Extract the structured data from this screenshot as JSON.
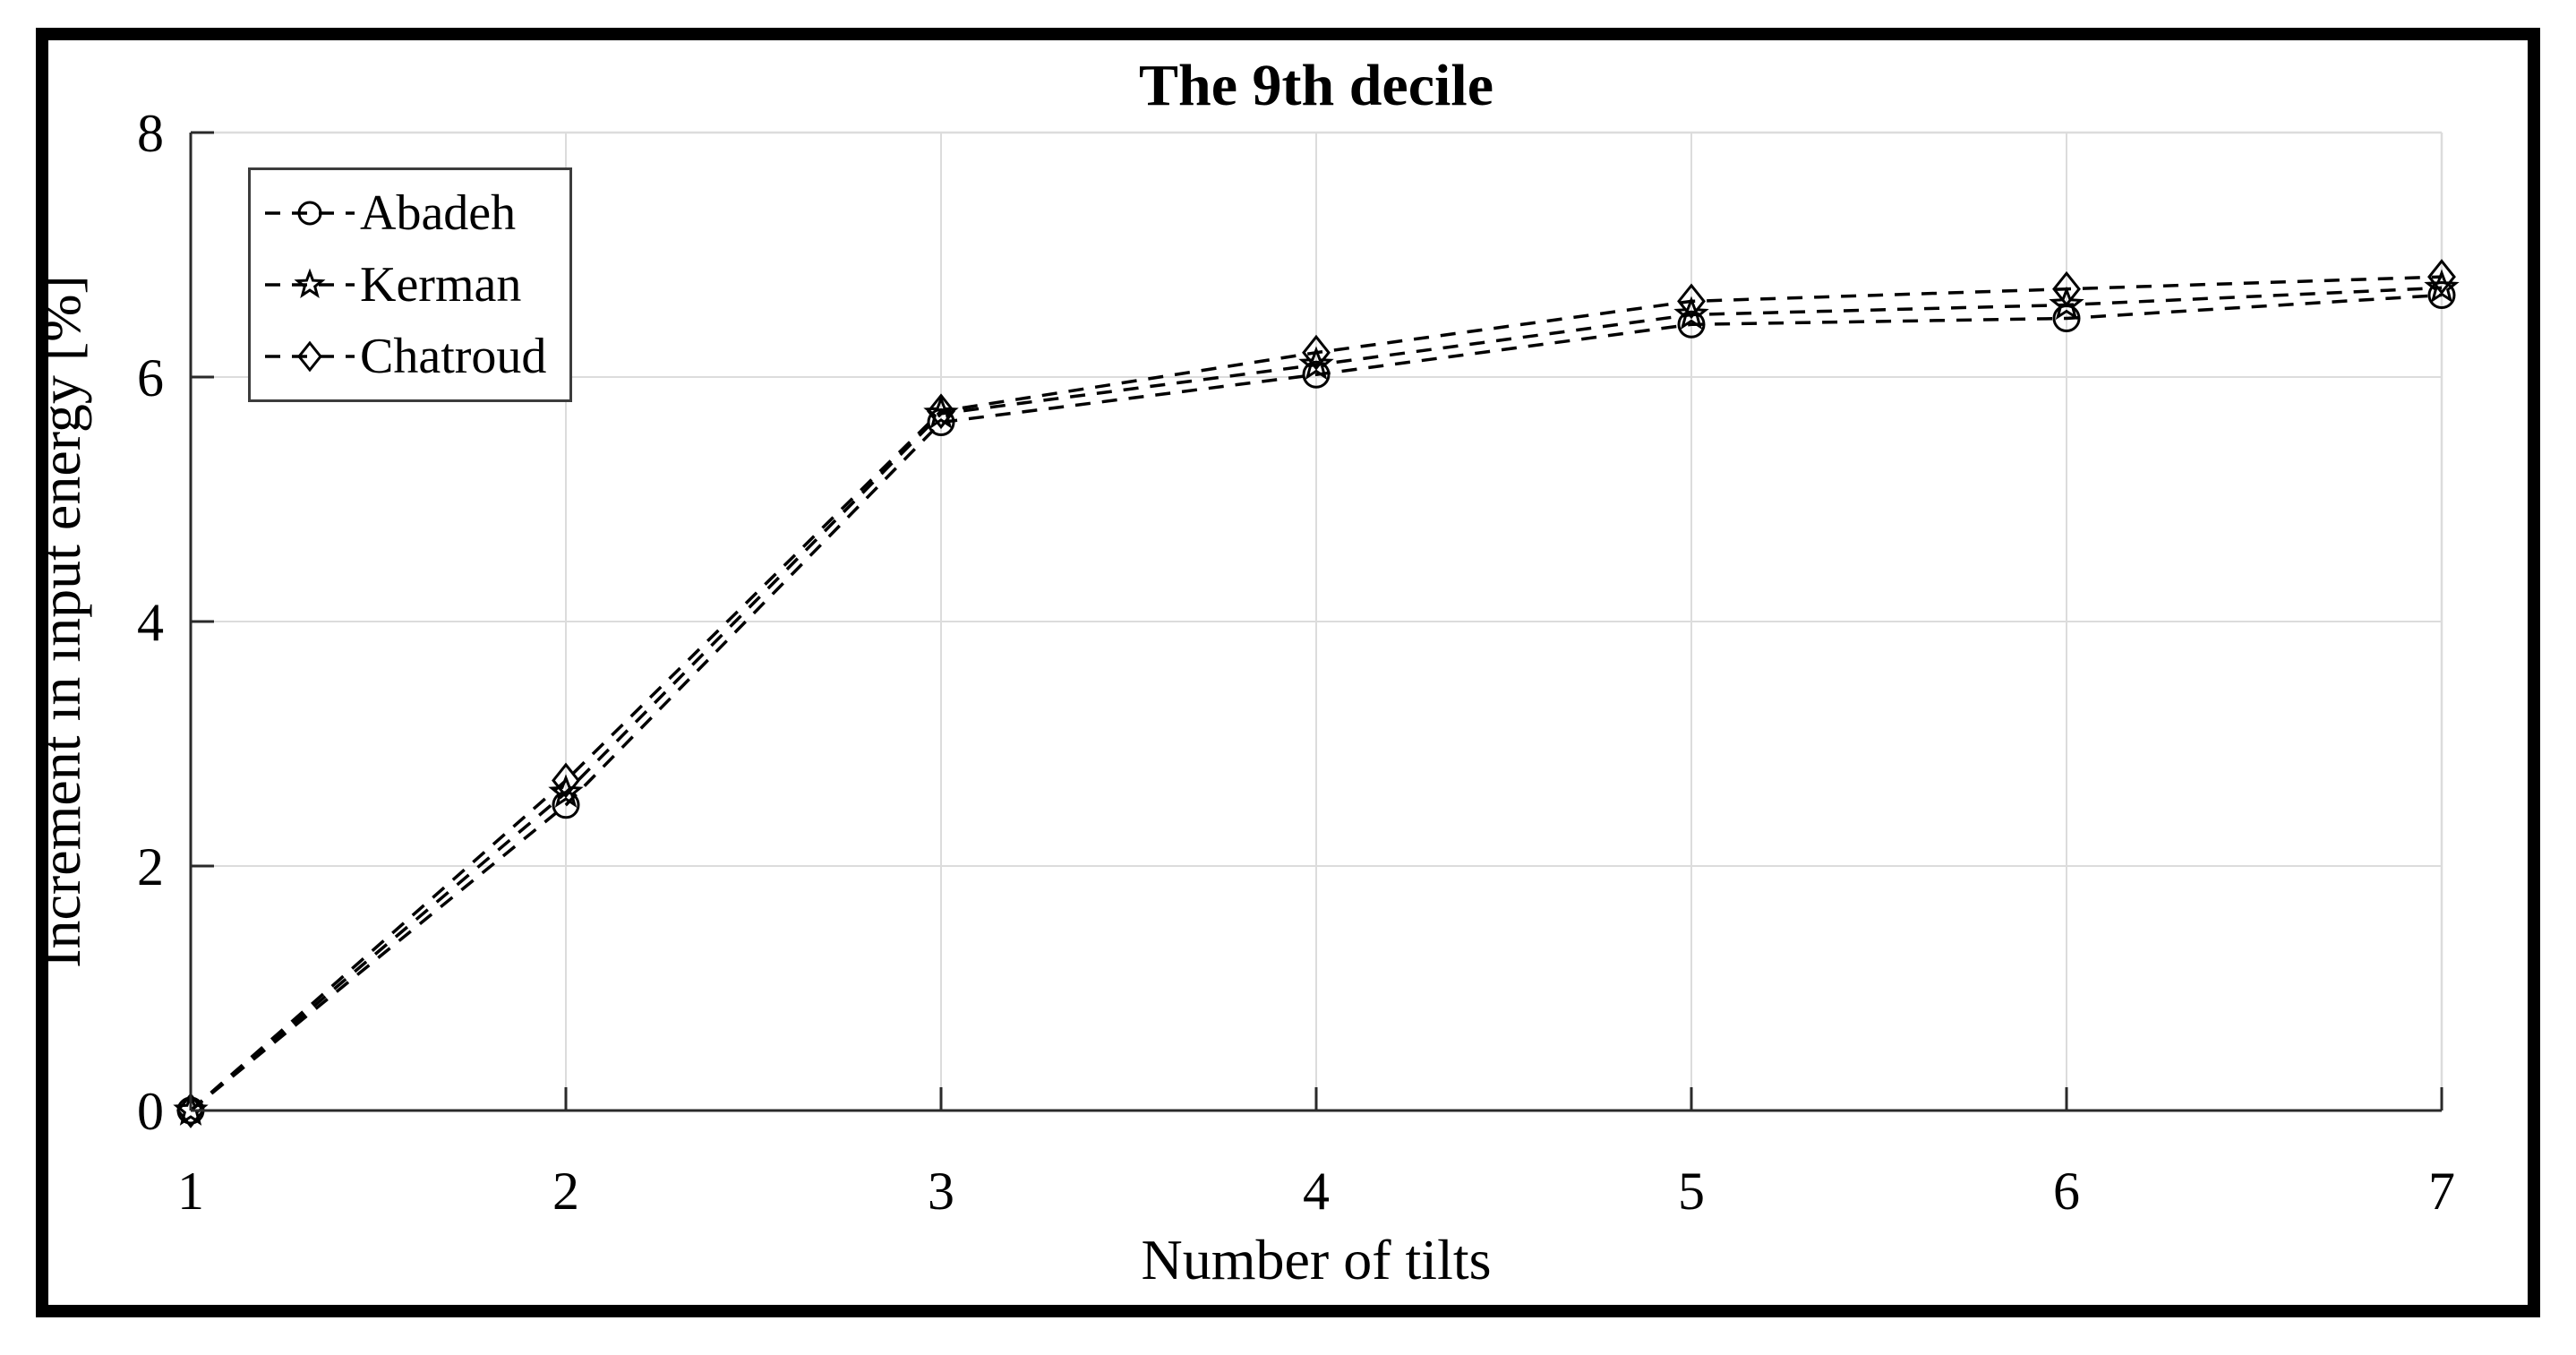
{
  "figure": {
    "background": "#ffffff",
    "border_color": "#000000"
  },
  "chart_data": {
    "type": "line",
    "title": "The 9th decile",
    "xlabel": "Number of tilts",
    "ylabel": "Increment in input energy [%]",
    "xlim": [
      1,
      7
    ],
    "ylim": [
      0,
      8
    ],
    "xticks": [
      "1",
      "2",
      "3",
      "4",
      "5",
      "6",
      "7"
    ],
    "yticks": [
      "0",
      "2",
      "4",
      "6",
      "8"
    ],
    "grid": true,
    "legend_position": "top-left",
    "line_style": "dashed",
    "line_color": "#000000",
    "grid_color": "#dcdcdc",
    "axis_color": "#2a2a2a",
    "x": [
      1,
      2,
      3,
      4,
      5,
      6,
      7
    ],
    "series": [
      {
        "name": "Abadeh",
        "marker": "circle",
        "color": "#000000",
        "values": [
          0,
          2.5,
          5.63,
          6.02,
          6.43,
          6.48,
          6.67
        ]
      },
      {
        "name": "Kerman",
        "marker": "star",
        "color": "#000000",
        "values": [
          0,
          2.6,
          5.7,
          6.1,
          6.51,
          6.59,
          6.73
        ]
      },
      {
        "name": "Chatroud",
        "marker": "diamond",
        "color": "#000000",
        "values": [
          0,
          2.7,
          5.72,
          6.2,
          6.62,
          6.72,
          6.82
        ]
      }
    ]
  }
}
